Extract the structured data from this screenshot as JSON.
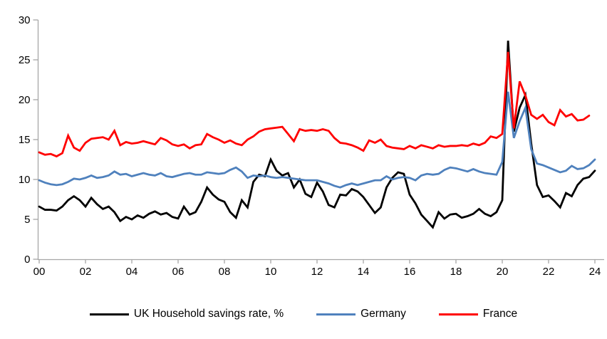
{
  "chart_data": {
    "type": "line",
    "title": "",
    "frequency": "quarterly",
    "x_axis": {
      "start_year": 2000,
      "tick_labels": [
        "00",
        "02",
        "04",
        "06",
        "08",
        "10",
        "12",
        "14",
        "16",
        "18",
        "20",
        "22",
        "24"
      ],
      "tick_interval_years": 2
    },
    "y_axis": {
      "ticks": [
        0,
        5,
        10,
        15,
        20,
        25,
        30
      ],
      "range": [
        0,
        30
      ]
    },
    "axis_color": "#a6a6a6",
    "legend_position": "bottom",
    "grid": false,
    "series": [
      {
        "name": "UK Household savings rate, %",
        "color": "#000000",
        "values": [
          6.6,
          6.2,
          6.2,
          6.1,
          6.6,
          7.4,
          7.9,
          7.4,
          6.6,
          7.7,
          6.9,
          6.3,
          6.6,
          5.9,
          4.8,
          5.3,
          5.0,
          5.5,
          5.2,
          5.7,
          6.0,
          5.6,
          5.8,
          5.3,
          5.1,
          6.6,
          5.6,
          5.9,
          7.2,
          9.0,
          8.1,
          7.5,
          7.2,
          5.9,
          5.2,
          7.4,
          6.5,
          9.7,
          10.6,
          10.4,
          12.5,
          11.1,
          10.5,
          10.8,
          9.0,
          10.0,
          8.2,
          7.8,
          9.6,
          8.5,
          6.8,
          6.5,
          8.1,
          8.0,
          8.8,
          8.5,
          7.8,
          6.8,
          5.8,
          6.5,
          9.0,
          10.2,
          10.9,
          10.7,
          8.1,
          7.0,
          5.6,
          4.8,
          4.0,
          5.9,
          5.1,
          5.6,
          5.7,
          5.2,
          5.4,
          5.7,
          6.3,
          5.7,
          5.4,
          5.9,
          7.4,
          27.4,
          16.0,
          19.0,
          20.6,
          14.5,
          9.3,
          7.8,
          8.0,
          7.3,
          6.5,
          8.3,
          7.9,
          9.3,
          10.1,
          10.3,
          11.1
        ]
      },
      {
        "name": "Germany",
        "color": "#4f81bd",
        "values": [
          9.9,
          9.6,
          9.4,
          9.3,
          9.4,
          9.7,
          10.1,
          10.0,
          10.2,
          10.5,
          10.2,
          10.3,
          10.5,
          11.0,
          10.6,
          10.7,
          10.4,
          10.6,
          10.8,
          10.6,
          10.5,
          10.8,
          10.4,
          10.3,
          10.5,
          10.7,
          10.8,
          10.6,
          10.6,
          10.9,
          10.8,
          10.7,
          10.8,
          11.2,
          11.5,
          11.0,
          10.2,
          10.5,
          10.4,
          10.5,
          10.3,
          10.2,
          10.3,
          10.2,
          10.1,
          10.0,
          9.9,
          9.9,
          9.9,
          9.7,
          9.5,
          9.2,
          9.0,
          9.3,
          9.5,
          9.3,
          9.5,
          9.7,
          9.9,
          9.9,
          10.4,
          10.0,
          10.2,
          10.3,
          10.2,
          9.9,
          10.5,
          10.7,
          10.6,
          10.7,
          11.2,
          11.5,
          11.4,
          11.2,
          11.0,
          11.3,
          11.0,
          10.8,
          10.7,
          10.6,
          12.2,
          21.0,
          15.2,
          17.3,
          19.0,
          13.8,
          12.0,
          11.8,
          11.5,
          11.2,
          10.9,
          11.1,
          11.7,
          11.3,
          11.4,
          11.8,
          12.5
        ]
      },
      {
        "name": "France",
        "color": "#ff0000",
        "values": [
          13.4,
          13.1,
          13.2,
          12.9,
          13.3,
          15.5,
          14.0,
          13.6,
          14.6,
          15.1,
          15.2,
          15.3,
          15.0,
          16.1,
          14.3,
          14.7,
          14.5,
          14.6,
          14.8,
          14.6,
          14.4,
          15.2,
          14.9,
          14.4,
          14.2,
          14.4,
          13.9,
          14.3,
          14.4,
          15.7,
          15.3,
          15.0,
          14.6,
          14.9,
          14.5,
          14.3,
          15.0,
          15.4,
          16.0,
          16.3,
          16.4,
          16.5,
          16.6,
          15.7,
          14.8,
          16.3,
          16.1,
          16.2,
          16.1,
          16.3,
          16.1,
          15.2,
          14.6,
          14.5,
          14.3,
          14.0,
          13.6,
          14.9,
          14.6,
          15.0,
          14.2,
          14.0,
          13.9,
          13.8,
          14.2,
          13.9,
          14.3,
          14.1,
          13.9,
          14.3,
          14.1,
          14.2,
          14.2,
          14.3,
          14.2,
          14.5,
          14.3,
          14.6,
          15.4,
          15.2,
          15.7,
          26.0,
          16.4,
          22.3,
          20.5,
          18.1,
          17.6,
          18.1,
          17.2,
          16.8,
          18.7,
          17.9,
          18.2,
          17.4,
          17.5,
          18.0
        ]
      }
    ]
  },
  "legend": {
    "items": [
      {
        "label": "UK Household savings rate, %"
      },
      {
        "label": "Germany"
      },
      {
        "label": "France"
      }
    ]
  }
}
